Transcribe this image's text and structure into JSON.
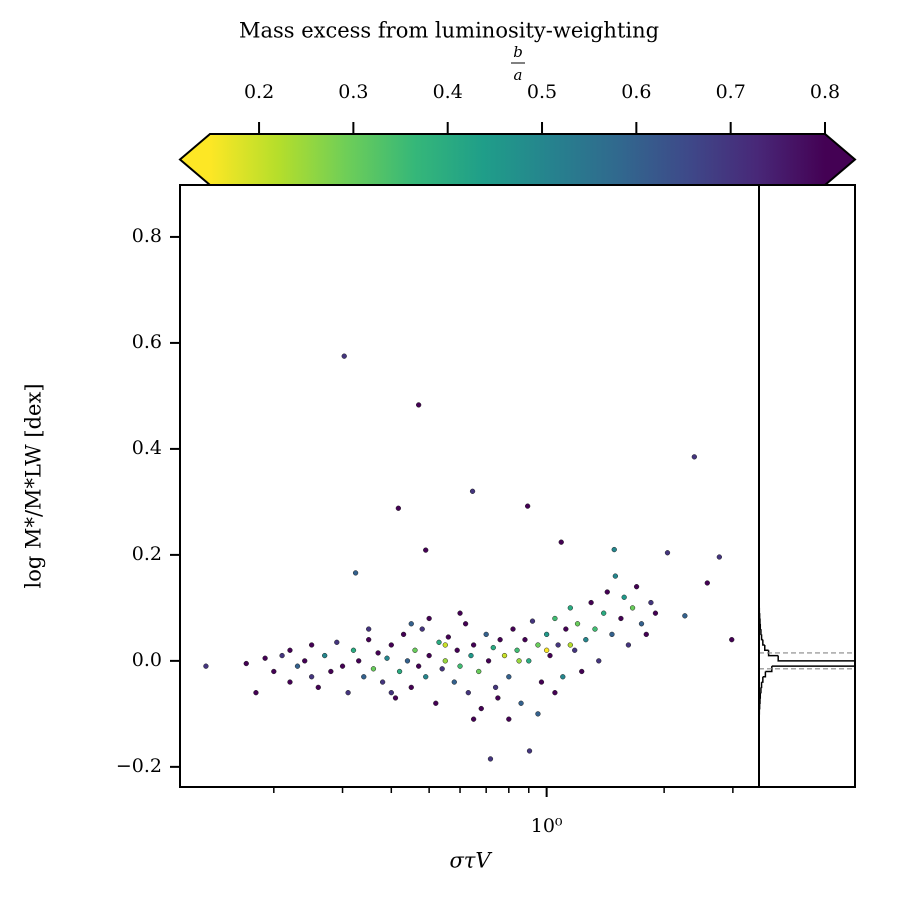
{
  "chart_data": {
    "type": "scatter",
    "colorbar_title": "Mass excess from luminosity-weighting",
    "colorbar_label": {
      "numerator": "b",
      "denominator": "a"
    },
    "xlabel": "στV",
    "ylabel": "log M*/M*LW [dex]",
    "xscale": "log",
    "xlim": [
      0.115,
      3.5
    ],
    "ylim": [
      -0.238,
      0.898
    ],
    "xticks": [
      {
        "value": 1,
        "label": "10⁰"
      }
    ],
    "xminorticks": [
      0.2,
      0.3,
      0.4,
      0.5,
      0.6,
      0.7,
      0.8,
      0.9,
      2,
      3
    ],
    "yticks": [
      {
        "value": -0.2,
        "label": "−0.2"
      },
      {
        "value": 0,
        "label": "0.0"
      },
      0.2,
      0.4,
      0.6,
      0.8
    ],
    "clim": [
      0.148,
      0.8
    ],
    "cticks": [
      0.2,
      0.3,
      0.4,
      0.5,
      0.6,
      0.7,
      0.8
    ],
    "colormap": [
      "#fde725",
      "#b5de2b",
      "#6ece58",
      "#35b779",
      "#1f9e89",
      "#26828e",
      "#31688e",
      "#3e4989",
      "#482878",
      "#440154"
    ],
    "x": [
      0.303,
      0.47,
      0.646,
      2.39,
      0.417,
      0.894,
      0.49,
      1.09,
      0.324,
      0.134,
      0.718,
      0.904,
      2.98,
      2.77,
      2.04,
      1.49,
      2.58,
      2.26,
      0.17,
      0.18,
      0.19,
      0.2,
      0.21,
      0.22,
      0.22,
      0.23,
      0.24,
      0.25,
      0.25,
      0.26,
      0.27,
      0.28,
      0.29,
      0.3,
      0.31,
      0.32,
      0.33,
      0.34,
      0.35,
      0.36,
      0.37,
      0.38,
      0.39,
      0.4,
      0.41,
      0.42,
      0.43,
      0.44,
      0.45,
      0.46,
      0.47,
      0.48,
      0.49,
      0.5,
      0.52,
      0.53,
      0.54,
      0.55,
      0.56,
      0.58,
      0.59,
      0.6,
      0.62,
      0.63,
      0.64,
      0.65,
      0.67,
      0.68,
      0.7,
      0.71,
      0.73,
      0.74,
      0.76,
      0.78,
      0.8,
      0.82,
      0.84,
      0.86,
      0.88,
      0.9,
      0.92,
      0.95,
      0.97,
      1.0,
      1.02,
      1.05,
      1.07,
      1.1,
      1.12,
      1.15,
      1.18,
      1.2,
      1.23,
      1.26,
      1.3,
      1.33,
      1.36,
      1.4,
      1.43,
      1.47,
      1.5,
      1.55,
      1.58,
      1.62,
      1.66,
      1.7,
      1.75,
      1.8,
      1.85,
      1.9,
      0.5,
      0.45,
      0.6,
      0.35,
      0.75,
      0.8,
      0.95,
      1.05,
      0.65,
      0.4,
      1.0,
      0.55,
      0.85,
      1.15
    ],
    "y": [
      0.575,
      0.483,
      0.32,
      0.385,
      0.288,
      0.292,
      0.209,
      0.224,
      0.166,
      -0.01,
      -0.185,
      -0.17,
      0.04,
      0.196,
      0.204,
      0.21,
      0.147,
      0.085,
      -0.005,
      -0.06,
      0.005,
      -0.02,
      0.01,
      -0.04,
      0.02,
      -0.01,
      0.0,
      -0.03,
      0.03,
      -0.05,
      0.01,
      -0.02,
      0.035,
      -0.01,
      -0.06,
      0.02,
      0.0,
      -0.03,
      0.04,
      -0.015,
      0.015,
      -0.04,
      0.005,
      0.03,
      -0.07,
      -0.02,
      0.05,
      0.0,
      -0.05,
      0.02,
      -0.01,
      0.06,
      -0.03,
      0.01,
      -0.08,
      0.035,
      -0.015,
      0.0,
      0.045,
      -0.04,
      0.02,
      -0.01,
      0.07,
      -0.06,
      0.01,
      0.03,
      -0.02,
      -0.09,
      0.05,
      0.0,
      0.025,
      -0.05,
      0.04,
      0.01,
      -0.03,
      0.06,
      0.02,
      -0.08,
      0.04,
      0.0,
      0.075,
      0.03,
      -0.04,
      0.05,
      0.01,
      0.08,
      0.03,
      -0.03,
      0.06,
      0.1,
      0.02,
      0.07,
      -0.02,
      0.04,
      0.11,
      0.06,
      0.0,
      0.09,
      0.13,
      0.05,
      0.16,
      0.08,
      0.12,
      0.03,
      0.1,
      0.14,
      0.07,
      0.05,
      0.11,
      0.09,
      0.08,
      0.07,
      0.09,
      0.06,
      -0.07,
      -0.11,
      -0.1,
      -0.06,
      -0.11,
      -0.06,
      0.02,
      0.03,
      0.0,
      0.03
    ],
    "c": [
      0.7,
      0.85,
      0.7,
      0.7,
      0.85,
      0.85,
      0.85,
      0.85,
      0.6,
      0.7,
      0.7,
      0.7,
      0.85,
      0.7,
      0.7,
      0.5,
      0.85,
      0.6,
      0.85,
      0.85,
      0.8,
      0.85,
      0.7,
      0.85,
      0.85,
      0.6,
      0.85,
      0.7,
      0.85,
      0.85,
      0.5,
      0.85,
      0.7,
      0.85,
      0.7,
      0.4,
      0.85,
      0.6,
      0.85,
      0.3,
      0.85,
      0.7,
      0.5,
      0.85,
      0.85,
      0.4,
      0.85,
      0.6,
      0.85,
      0.3,
      0.85,
      0.7,
      0.5,
      0.85,
      0.85,
      0.4,
      0.7,
      0.25,
      0.85,
      0.6,
      0.85,
      0.35,
      0.85,
      0.7,
      0.45,
      0.85,
      0.3,
      0.85,
      0.6,
      0.85,
      0.4,
      0.7,
      0.85,
      0.2,
      0.6,
      0.85,
      0.35,
      0.6,
      0.85,
      0.4,
      0.7,
      0.3,
      0.85,
      0.45,
      0.85,
      0.35,
      0.7,
      0.5,
      0.85,
      0.4,
      0.7,
      0.3,
      0.85,
      0.5,
      0.85,
      0.35,
      0.7,
      0.4,
      0.85,
      0.6,
      0.5,
      0.85,
      0.45,
      0.7,
      0.3,
      0.85,
      0.6,
      0.85,
      0.7,
      0.85,
      0.85,
      0.6,
      0.85,
      0.7,
      0.85,
      0.85,
      0.6,
      0.85,
      0.85,
      0.7,
      0.15,
      0.2,
      0.25,
      0.22
    ],
    "hist": {
      "bins": [
        -0.1,
        -0.09,
        -0.08,
        -0.07,
        -0.06,
        -0.05,
        -0.04,
        -0.03,
        -0.02,
        -0.01,
        0.0,
        0.01,
        0.02,
        0.03,
        0.04,
        0.05,
        0.06,
        0.07,
        0.08,
        0.09,
        0.1
      ],
      "counts": [
        1,
        2,
        3,
        4,
        6,
        8,
        12,
        20,
        40,
        300,
        60,
        30,
        18,
        12,
        8,
        6,
        4,
        3,
        2,
        1
      ],
      "xlim": [
        0,
        300
      ],
      "percentiles": [
        -0.015,
        0.015
      ]
    }
  }
}
